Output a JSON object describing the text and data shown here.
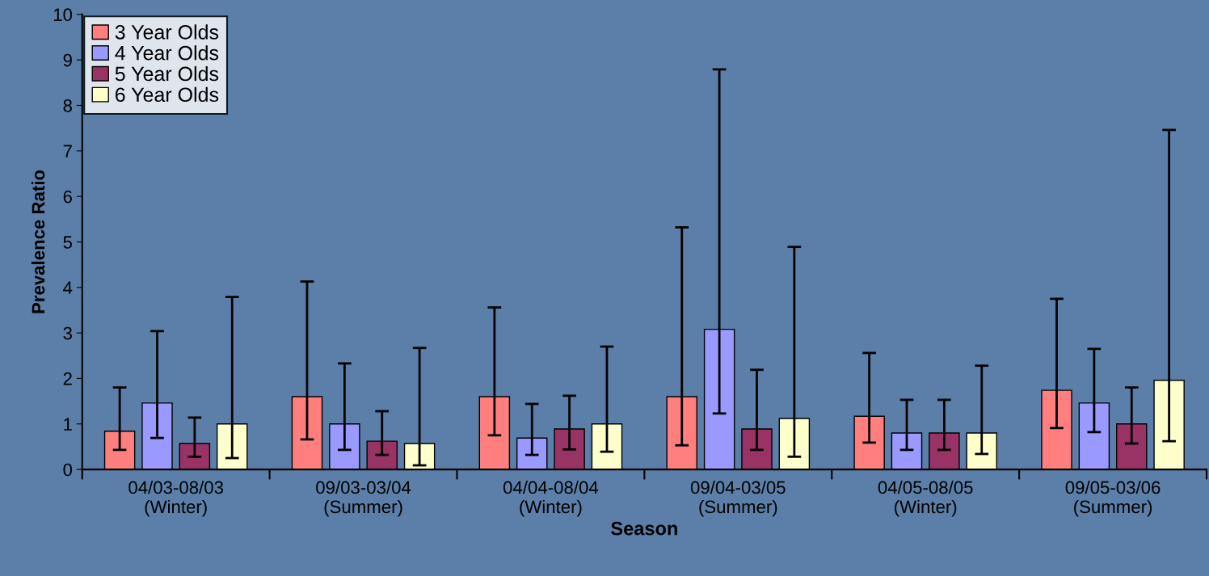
{
  "chart_data": {
    "type": "bar",
    "xlabel": "Season",
    "ylabel": "Prevalence Ratio",
    "categories": [
      "04/03-08/03\n(Winter)",
      "09/03-03/04\n(Summer)",
      "04/04-08/04\n(Winter)",
      "09/04-03/05\n(Summer)",
      "04/05-08/05\n(Winter)",
      "09/05-03/06\n(Summer)"
    ],
    "series": [
      {
        "name": "3 Year Olds",
        "color": "#ff7f7f",
        "values": [
          0.84,
          1.6,
          1.6,
          1.6,
          1.17,
          1.74
        ],
        "errors": [
          [
            0.43,
            1.8
          ],
          [
            0.66,
            4.13
          ],
          [
            0.75,
            3.56
          ],
          [
            0.53,
            5.32
          ],
          [
            0.59,
            2.56
          ],
          [
            0.91,
            3.75
          ]
        ]
      },
      {
        "name": "4 Year Olds",
        "color": "#9999ff",
        "values": [
          1.46,
          1.0,
          0.69,
          3.08,
          0.8,
          1.46
        ],
        "errors": [
          [
            0.69,
            3.04
          ],
          [
            0.43,
            2.33
          ],
          [
            0.32,
            1.44
          ],
          [
            1.23,
            8.79
          ],
          [
            0.43,
            1.53
          ],
          [
            0.82,
            2.65
          ]
        ]
      },
      {
        "name": "5 Year Olds",
        "color": "#993366",
        "values": [
          0.57,
          0.62,
          0.89,
          0.89,
          0.8,
          1.0
        ],
        "errors": [
          [
            0.28,
            1.14
          ],
          [
            0.32,
            1.28
          ],
          [
            0.44,
            1.62
          ],
          [
            0.43,
            2.19
          ],
          [
            0.43,
            1.53
          ],
          [
            0.57,
            1.8
          ]
        ]
      },
      {
        "name": "6 Year Olds",
        "color": "#ffffcc",
        "values": [
          1.0,
          0.57,
          1.0,
          1.12,
          0.8,
          1.96
        ],
        "errors": [
          [
            0.25,
            3.79
          ],
          [
            0.09,
            2.67
          ],
          [
            0.39,
            2.7
          ],
          [
            0.28,
            4.89
          ],
          [
            0.34,
            2.28
          ],
          [
            0.62,
            7.46
          ]
        ]
      }
    ],
    "ylim": [
      0,
      10
    ],
    "yticks": [
      0,
      1,
      2,
      3,
      4,
      5,
      6,
      7,
      8,
      9,
      10
    ],
    "legend": "top left",
    "grid": false
  }
}
